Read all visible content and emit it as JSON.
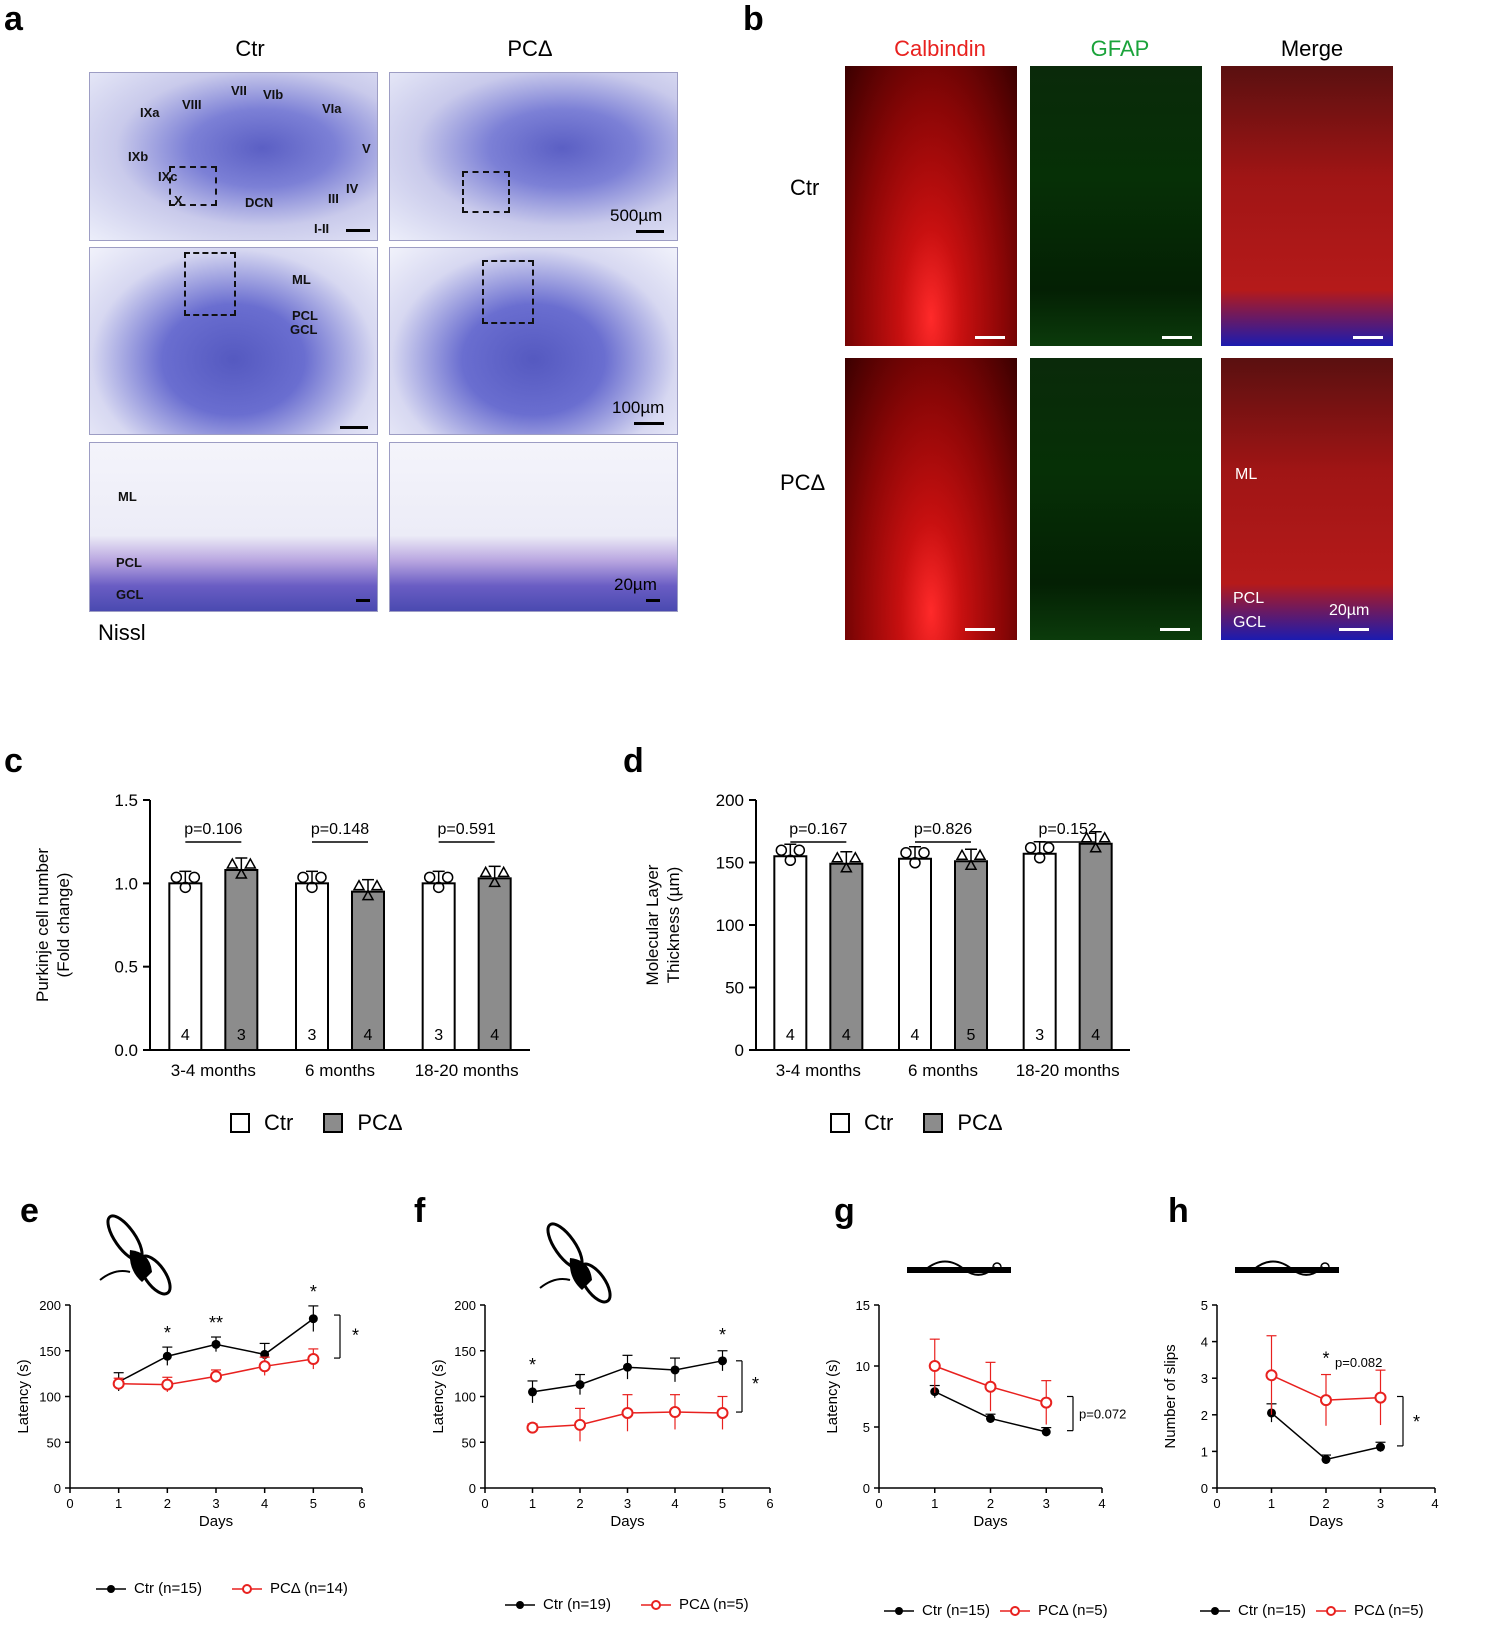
{
  "panel_a": {
    "letter": "a",
    "col_titles": [
      "Ctr",
      "PCΔ"
    ],
    "lobule_labels": [
      "IXa",
      "VIII",
      "VII",
      "VIb",
      "VIa",
      "V",
      "IXb",
      "IXc",
      "X",
      "DCN",
      "IV",
      "III",
      "I-II"
    ],
    "row2_labels": [
      "ML",
      "PCL",
      "GCL"
    ],
    "row3_labels": [
      "ML",
      "PCL",
      "GCL"
    ],
    "scale_500": "500µm",
    "scale_100": "100µm",
    "scale_20": "20µm",
    "stain": "Nissl"
  },
  "panel_b": {
    "letter": "b",
    "col_titles": [
      "Calbindin",
      "GFAP",
      "Merge"
    ],
    "row_titles": [
      "Ctr",
      "PCΔ"
    ],
    "merge_labels": [
      "ML",
      "PCL",
      "GCL"
    ],
    "scale": "20µm",
    "colors": {
      "calbindin": "#e8211f",
      "gfap": "#1aa33a"
    }
  },
  "legend_cd": {
    "ctr": "Ctr",
    "pc": "PCΔ"
  },
  "legend_efgh": {
    "e": {
      "ctr": "Ctr (n=15)",
      "pc": "PCΔ (n=14)"
    },
    "f": {
      "ctr": "Ctr (n=19)",
      "pc": "PCΔ (n=5)"
    },
    "g": {
      "ctr": "Ctr (n=15)",
      "pc": "PCΔ (n=5)"
    },
    "h": {
      "ctr": "Ctr (n=15)",
      "pc": "PCΔ (n=5)"
    }
  },
  "chart_data": [
    {
      "id": "c",
      "letter": "c",
      "type": "bar",
      "categories": [
        "3-4 months",
        "6 months",
        "18-20 months"
      ],
      "ylabel": "Purkinje cell number (Fold change)",
      "ylabel_lines": [
        "Purkinje cell number",
        "(Fold change)"
      ],
      "ylim": [
        0,
        1.5
      ],
      "yticks": [
        "0.0",
        "0.5",
        "1.0",
        "1.5"
      ],
      "series": [
        {
          "name": "Ctr",
          "values": [
            1.0,
            1.0,
            1.0
          ],
          "n": [
            "4",
            "3",
            "3"
          ],
          "color": "#ffffff"
        },
        {
          "name": "PCΔ",
          "values": [
            1.08,
            0.95,
            1.03
          ],
          "n": [
            "3",
            "4",
            "4"
          ],
          "color": "#8c8c8c"
        }
      ],
      "pvalues": [
        "p=0.106",
        "p=0.148",
        "p=0.591"
      ]
    },
    {
      "id": "d",
      "letter": "d",
      "type": "bar",
      "categories": [
        "3-4 months",
        "6 months",
        "18-20 months"
      ],
      "ylabel": "Molecular Layer Thickness (µm)",
      "ylabel_lines": [
        "Molecular Layer",
        "Thickness (µm)"
      ],
      "ylim": [
        0,
        200
      ],
      "yticks": [
        "0",
        "50",
        "100",
        "150",
        "200"
      ],
      "series": [
        {
          "name": "Ctr",
          "values": [
            155,
            153,
            157
          ],
          "n": [
            "4",
            "4",
            "3"
          ],
          "color": "#ffffff"
        },
        {
          "name": "PCΔ",
          "values": [
            149,
            151,
            165
          ],
          "n": [
            "4",
            "5",
            "4"
          ],
          "color": "#8c8c8c"
        }
      ],
      "pvalues": [
        "p=0.167",
        "p=0.826",
        "p=0.152"
      ]
    },
    {
      "id": "e",
      "letter": "e",
      "type": "line",
      "xlabel": "Days",
      "ylabel": "Latency (s)",
      "xlim": [
        0,
        6
      ],
      "ylim": [
        0,
        200
      ],
      "xticks": [
        "0",
        "1",
        "2",
        "3",
        "4",
        "5",
        "6"
      ],
      "yticks": [
        "0",
        "50",
        "100",
        "150",
        "200"
      ],
      "x": [
        1,
        2,
        3,
        4,
        5
      ],
      "series": [
        {
          "name": "Ctr (n=15)",
          "values": [
            116,
            144,
            157,
            146,
            185
          ],
          "errors": [
            10,
            10,
            8,
            12,
            14
          ],
          "color": "#000000"
        },
        {
          "name": "PCΔ (n=14)",
          "values": [
            114,
            113,
            122,
            133,
            141
          ],
          "errors": [
            6,
            8,
            7,
            10,
            11
          ],
          "color": "#e8211f"
        }
      ],
      "annotations": [
        "*",
        "**",
        "*"
      ],
      "bracket": "*"
    },
    {
      "id": "f",
      "letter": "f",
      "type": "line",
      "xlabel": "Days",
      "ylabel": "Latency (s)",
      "xlim": [
        0,
        6
      ],
      "ylim": [
        0,
        200
      ],
      "xticks": [
        "0",
        "1",
        "2",
        "3",
        "4",
        "5",
        "6"
      ],
      "yticks": [
        "0",
        "50",
        "100",
        "150",
        "200"
      ],
      "x": [
        1,
        2,
        3,
        4,
        5
      ],
      "series": [
        {
          "name": "Ctr (n=19)",
          "values": [
            105,
            113,
            132,
            129,
            139
          ],
          "errors": [
            12,
            11,
            13,
            13,
            11
          ],
          "color": "#000000"
        },
        {
          "name": "PCΔ (n=5)",
          "values": [
            66,
            69,
            82,
            83,
            82
          ],
          "errors": [
            4,
            18,
            20,
            19,
            18
          ],
          "color": "#e8211f"
        }
      ],
      "annotations": [
        "*",
        "*"
      ],
      "bracket": "*"
    },
    {
      "id": "g",
      "letter": "g",
      "type": "line",
      "xlabel": "Days",
      "ylabel": "Latency (s)",
      "xlim": [
        0,
        4
      ],
      "ylim": [
        0,
        15
      ],
      "xticks": [
        "0",
        "1",
        "2",
        "3",
        "4"
      ],
      "yticks": [
        "0",
        "5",
        "10",
        "15"
      ],
      "x": [
        1,
        2,
        3
      ],
      "series": [
        {
          "name": "Ctr (n=15)",
          "values": [
            7.9,
            5.7,
            4.6
          ],
          "errors": [
            0.5,
            0.35,
            0.35
          ],
          "color": "#000000"
        },
        {
          "name": "PCΔ (n=5)",
          "values": [
            10.0,
            8.3,
            7.0
          ],
          "errors": [
            2.2,
            2.0,
            1.8
          ],
          "color": "#e8211f"
        }
      ],
      "bracket": "p=0.072"
    },
    {
      "id": "h",
      "letter": "h",
      "type": "line",
      "xlabel": "Days",
      "ylabel": "Number of slips",
      "xlim": [
        0,
        4
      ],
      "ylim": [
        0,
        5
      ],
      "xticks": [
        "0",
        "1",
        "2",
        "3",
        "4"
      ],
      "yticks": [
        "0",
        "1",
        "2",
        "3",
        "4",
        "5"
      ],
      "x": [
        1,
        2,
        3
      ],
      "series": [
        {
          "name": "Ctr (n=15)",
          "values": [
            2.05,
            0.78,
            1.12
          ],
          "errors": [
            0.25,
            0.12,
            0.13
          ],
          "color": "#000000"
        },
        {
          "name": "PCΔ (n=5)",
          "values": [
            3.08,
            2.4,
            2.47
          ],
          "errors": [
            1.08,
            0.7,
            0.75
          ],
          "color": "#e8211f"
        }
      ],
      "annotations": [
        "*",
        "p=0.082"
      ],
      "bracket": "*"
    }
  ]
}
